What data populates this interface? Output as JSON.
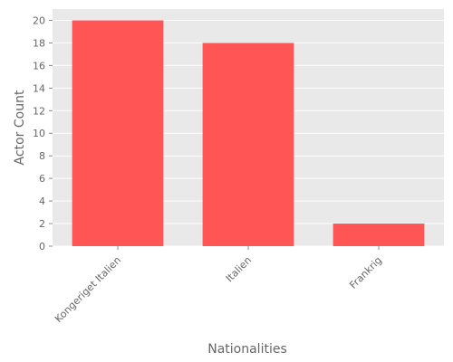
{
  "chart_data": {
    "type": "bar",
    "categories": [
      "Kongeriget Italien",
      "Italien",
      "Frankrig"
    ],
    "values": [
      20,
      18,
      2
    ],
    "title": "",
    "xlabel": "Nationalities",
    "ylabel": "Actor Count",
    "ylim": [
      0,
      21
    ],
    "yticks": [
      0,
      2,
      4,
      6,
      8,
      10,
      12,
      14,
      16,
      18,
      20
    ],
    "grid": true,
    "colors": {
      "bar": "#ff5555",
      "plot_background": "#e9e9e9",
      "grid": "#ffffff",
      "text": "#666666"
    }
  }
}
